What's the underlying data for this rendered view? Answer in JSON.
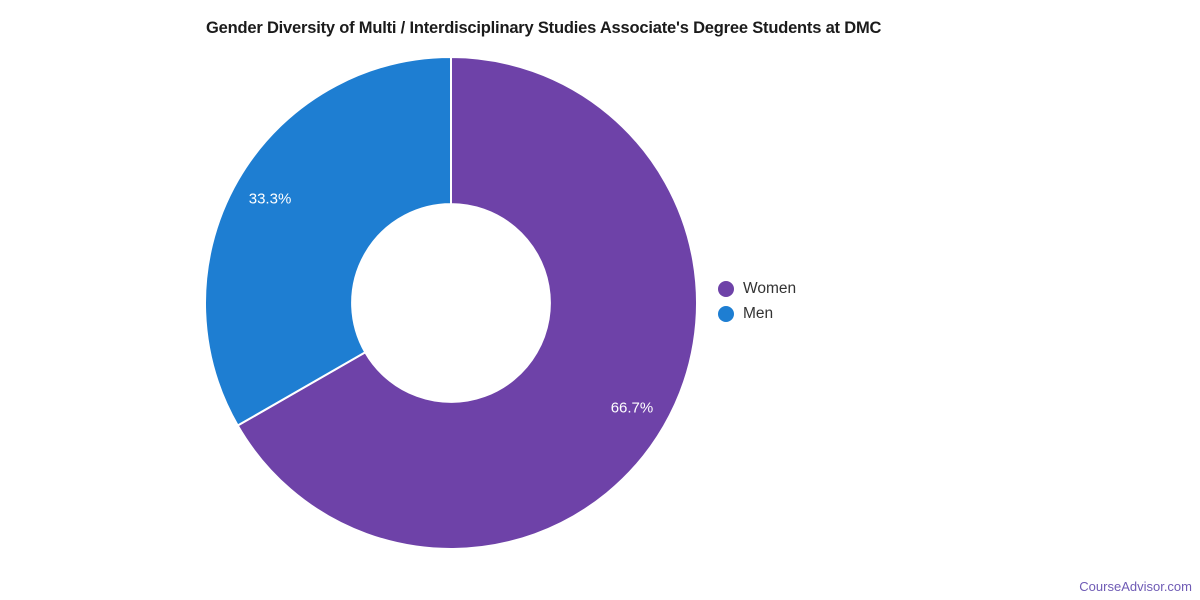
{
  "title": "Gender Diversity of Multi / Interdisciplinary Studies Associate's Degree Students at DMC",
  "watermark": "CourseAdvisor.com",
  "colors": {
    "women": "#6E42A8",
    "men": "#1E7ED2",
    "slice_separator": "#ffffff",
    "label_text": "#ffffff",
    "legend_text": "#333333",
    "title_text": "#1b1b1b",
    "watermark_text": "#6f5bb5",
    "background": "#ffffff"
  },
  "legend": {
    "position": "right-middle",
    "items": [
      {
        "label": "Women",
        "color": "#6E42A8"
      },
      {
        "label": "Men",
        "color": "#1E7ED2"
      }
    ]
  },
  "chart_data": {
    "type": "pie",
    "subtype": "donut",
    "title": "Gender Diversity of Multi / Interdisciplinary Studies Associate's Degree Students at DMC",
    "categories": [
      "Women",
      "Men"
    ],
    "values": [
      66.7,
      33.3
    ],
    "data_labels": [
      "66.7%",
      "33.3%"
    ],
    "colors": [
      "#6E42A8",
      "#1E7ED2"
    ],
    "start_angle_deg": 0,
    "direction": "clockwise",
    "inner_radius_ratio": 0.402,
    "legend_position": "right",
    "grid": false
  }
}
